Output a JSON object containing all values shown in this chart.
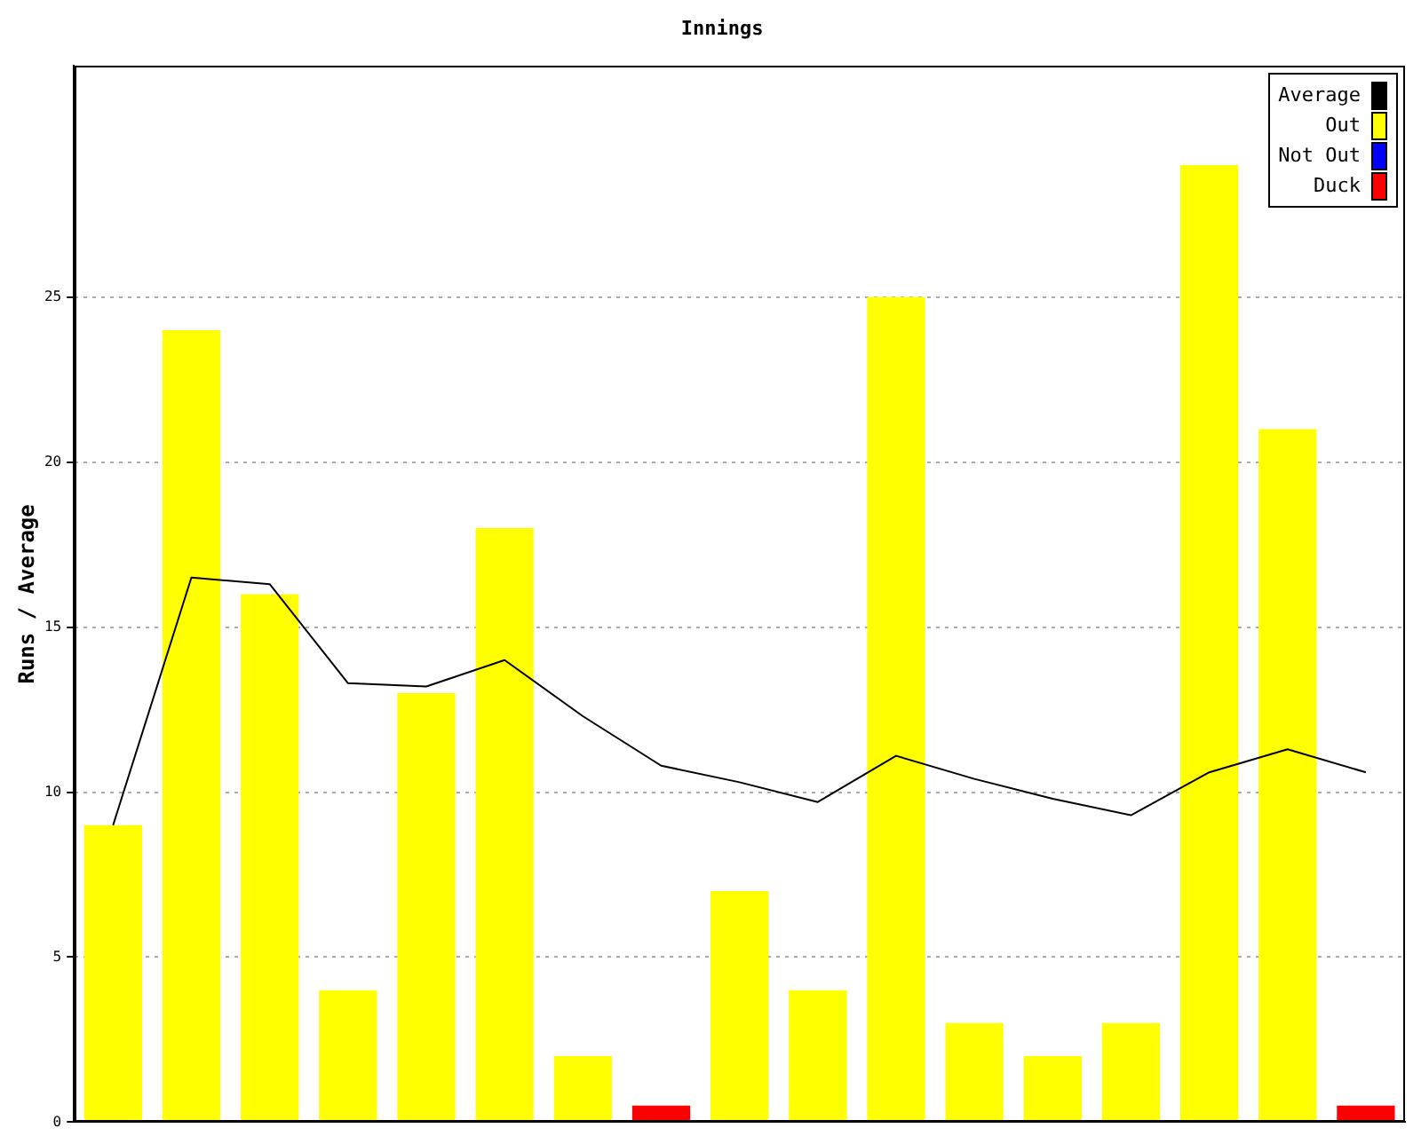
{
  "chart_data": {
    "type": "bar",
    "title": "Innings",
    "ylabel": "Runs / Average",
    "stacked": true,
    "categories": [
      null,
      null,
      null,
      null,
      null,
      null,
      null,
      null,
      null,
      null,
      null,
      null,
      null,
      null,
      null,
      null,
      null
    ],
    "series": [
      {
        "name": "Average",
        "type": "line",
        "color": "#000000",
        "values": [
          9,
          16.5,
          16.3,
          13.3,
          13.2,
          14,
          12.3,
          10.8,
          10.3,
          9.7,
          11.1,
          10.4,
          9.8,
          9.3,
          10.6,
          11.3,
          10.6
        ]
      },
      {
        "name": "Out",
        "color": "#ffff00",
        "values": [
          9,
          24,
          16,
          4,
          13,
          18,
          2,
          null,
          7,
          4,
          25,
          3,
          2,
          3,
          29,
          21,
          null
        ]
      },
      {
        "name": "Not Out",
        "color": "#0000ff",
        "values": [
          null,
          null,
          null,
          null,
          null,
          null,
          null,
          null,
          null,
          null,
          null,
          null,
          null,
          null,
          null,
          null,
          null
        ]
      },
      {
        "name": "Duck",
        "color": "#ff0000",
        "values": [
          null,
          null,
          null,
          null,
          null,
          null,
          null,
          0.5,
          null,
          null,
          null,
          null,
          null,
          null,
          null,
          null,
          0.5
        ]
      }
    ],
    "ylim": [
      0,
      32
    ],
    "yticks": [
      0,
      5,
      10,
      15,
      20,
      25
    ],
    "grid": "y",
    "legend": "top right",
    "marker": "none",
    "tick_labels": "y"
  }
}
